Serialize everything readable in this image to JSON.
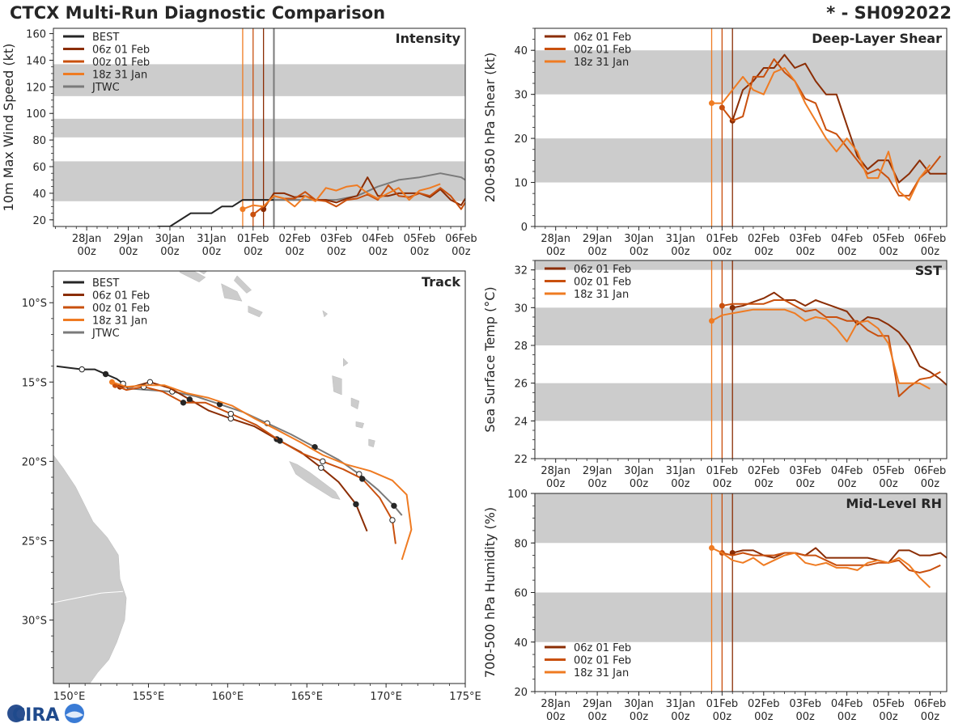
{
  "title": "CTCX Multi-Run Diagnostic Comparison",
  "storm_id": "* - SH092022",
  "logo_text": "CIRA",
  "colors": {
    "best": "#262626",
    "run06": "#8b2d04",
    "run00": "#c9500e",
    "run18": "#ef7b22",
    "jtwc": "#7a7a7a",
    "band": "#cccccc",
    "land": "#cccccc"
  },
  "time_ticks": [
    "28Jan\n00z",
    "29Jan\n00z",
    "30Jan\n00z",
    "31Jan\n00z",
    "01Feb\n00z",
    "02Feb\n00z",
    "03Feb\n00z",
    "04Feb\n00z",
    "05Feb\n00z",
    "06Feb\n00z"
  ],
  "chart_data": [
    {
      "id": "intensity",
      "type": "line",
      "title": "Intensity",
      "ylabel": "10m Max Wind Speed (kt)",
      "xlim": [
        -0.8,
        9.1
      ],
      "ylim": [
        15,
        164
      ],
      "yticks": [
        20,
        40,
        60,
        80,
        100,
        120,
        140,
        160
      ],
      "bands": [
        [
          34,
          64
        ],
        [
          82,
          96
        ],
        [
          113,
          137
        ]
      ],
      "vlines": [
        {
          "x": 3.75,
          "run": "run18"
        },
        {
          "x": 4.0,
          "run": "run00"
        },
        {
          "x": 4.25,
          "run": "run06"
        },
        {
          "x": 4.5,
          "run": "jtwc"
        }
      ],
      "legend": [
        "BEST",
        "06z 01 Feb",
        "00z 01 Feb",
        "18z 31 Jan",
        "JTWC"
      ],
      "series": [
        {
          "name": "BEST",
          "run": "best",
          "x": [
            1.7,
            2.0,
            2.5,
            3.0,
            3.25,
            3.5,
            3.75,
            4.0,
            4.25,
            4.5
          ],
          "y": [
            15,
            15,
            25,
            25,
            30,
            30,
            35,
            35,
            35,
            35
          ]
        },
        {
          "name": "JTWC",
          "run": "jtwc",
          "x": [
            4.5,
            5.0,
            5.5,
            6.0,
            6.5,
            7.0,
            7.5,
            8.0,
            8.5,
            9.0,
            9.1
          ],
          "y": [
            35,
            35,
            35,
            35,
            38,
            45,
            50,
            52,
            55,
            52,
            50
          ]
        },
        {
          "name": "06z 01 Feb",
          "run": "run06",
          "x": [
            4.25,
            4.5,
            4.75,
            5.0,
            5.25,
            5.5,
            5.75,
            6.0,
            6.25,
            6.5,
            6.75,
            7.0,
            7.25,
            7.5,
            7.75,
            8.0,
            8.25,
            8.5,
            8.75,
            9.0,
            9.1
          ],
          "y": [
            28,
            40,
            40,
            37,
            38,
            35,
            35,
            33,
            36,
            38,
            52,
            38,
            38,
            40,
            40,
            40,
            37,
            43,
            35,
            31,
            36
          ]
        },
        {
          "name": "00z 01 Feb",
          "run": "run00",
          "x": [
            4.0,
            4.25,
            4.5,
            4.75,
            5.0,
            5.25,
            5.5,
            5.75,
            6.0,
            6.25,
            6.5,
            6.75,
            7.0,
            7.25,
            7.5,
            7.75,
            8.0,
            8.25,
            8.5,
            8.75,
            9.0,
            9.1
          ],
          "y": [
            24,
            30,
            38,
            36,
            36,
            41,
            35,
            34,
            30,
            35,
            36,
            39,
            35,
            46,
            38,
            37,
            40,
            38,
            44,
            38,
            28,
            33
          ]
        },
        {
          "name": "18z 31 Jan",
          "run": "run18",
          "x": [
            3.75,
            4.0,
            4.25,
            4.5,
            4.75,
            5.0,
            5.25,
            5.5,
            5.75,
            6.0,
            6.25,
            6.5,
            6.75,
            7.0,
            7.25,
            7.5,
            7.75,
            8.0,
            8.25,
            8.5
          ],
          "y": [
            28,
            31,
            30,
            38,
            36,
            30,
            38,
            34,
            44,
            42,
            45,
            46,
            40,
            36,
            40,
            44,
            35,
            42,
            44,
            47
          ]
        }
      ]
    },
    {
      "id": "shear",
      "type": "line",
      "title": "Deep-Layer Shear",
      "ylabel": "200-850 hPa Shear (kt)",
      "xlim": [
        -0.5,
        9.4
      ],
      "ylim": [
        0,
        45
      ],
      "yticks": [
        0,
        10,
        20,
        30,
        40
      ],
      "bands": [
        [
          10,
          20
        ],
        [
          30,
          40
        ]
      ],
      "vlines": [
        {
          "x": 3.75,
          "run": "run18"
        },
        {
          "x": 4.0,
          "run": "run00"
        },
        {
          "x": 4.25,
          "run": "run06"
        }
      ],
      "legend": [
        "06z 01 Feb",
        "00z 01 Feb",
        "18z 31 Jan"
      ],
      "series": [
        {
          "name": "06z 01 Feb",
          "run": "run06",
          "x": [
            4.25,
            4.5,
            4.75,
            5.0,
            5.25,
            5.5,
            5.75,
            6.0,
            6.25,
            6.5,
            6.75,
            7.0,
            7.25,
            7.5,
            7.75,
            8.0,
            8.25,
            8.5,
            8.75,
            9.0,
            9.25,
            9.4
          ],
          "y": [
            24,
            31,
            33,
            36,
            36,
            39,
            36,
            37,
            33,
            30,
            30,
            23,
            16,
            13,
            15,
            15,
            10,
            12,
            15,
            12,
            12,
            12
          ]
        },
        {
          "name": "00z 01 Feb",
          "run": "run00",
          "x": [
            4.0,
            4.25,
            4.5,
            4.75,
            5.0,
            5.25,
            5.5,
            5.75,
            6.0,
            6.25,
            6.5,
            6.75,
            7.0,
            7.25,
            7.5,
            7.75,
            8.0,
            8.25,
            8.5,
            8.75,
            9.0,
            9.25
          ],
          "y": [
            27,
            24,
            25,
            34,
            34,
            38,
            35,
            33,
            29,
            28,
            22,
            21,
            18,
            15,
            12,
            13,
            11,
            7,
            7,
            11,
            13,
            16
          ]
        },
        {
          "name": "18z 31 Jan",
          "run": "run18",
          "x": [
            3.75,
            4.0,
            4.25,
            4.5,
            4.75,
            5.0,
            5.25,
            5.5,
            5.75,
            6.0,
            6.25,
            6.5,
            6.75,
            7.0,
            7.25,
            7.5,
            7.75,
            8.0,
            8.25,
            8.5,
            8.75,
            9.0
          ],
          "y": [
            28,
            28,
            31,
            34,
            31,
            30,
            35,
            36,
            33,
            28,
            24,
            20,
            17,
            20,
            17,
            11,
            11,
            17,
            8,
            6,
            11,
            14
          ]
        }
      ]
    },
    {
      "id": "sst",
      "type": "line",
      "title": "SST",
      "ylabel": "Sea Surface Temp (°C)",
      "xlim": [
        -0.5,
        9.4
      ],
      "ylim": [
        22,
        32.5
      ],
      "yticks": [
        22,
        24,
        26,
        28,
        30,
        32
      ],
      "bands": [
        [
          24,
          26
        ],
        [
          28,
          30
        ],
        [
          32,
          32.5
        ]
      ],
      "vlines": [
        {
          "x": 3.75,
          "run": "run18"
        },
        {
          "x": 4.0,
          "run": "run00"
        },
        {
          "x": 4.25,
          "run": "run06"
        }
      ],
      "legend": [
        "06z 01 Feb",
        "00z 01 Feb",
        "18z 31 Jan"
      ],
      "series": [
        {
          "name": "06z 01 Feb",
          "run": "run06",
          "x": [
            4.25,
            4.5,
            4.75,
            5.0,
            5.25,
            5.5,
            5.75,
            6.0,
            6.25,
            6.5,
            6.75,
            7.0,
            7.25,
            7.5,
            7.75,
            8.0,
            8.25,
            8.5,
            8.75,
            9.0,
            9.25,
            9.4
          ],
          "y": [
            30.0,
            30.1,
            30.3,
            30.5,
            30.8,
            30.4,
            30.4,
            30.1,
            30.4,
            30.2,
            30.0,
            29.8,
            29.1,
            29.5,
            29.4,
            29.1,
            28.7,
            28.0,
            26.9,
            26.6,
            26.2,
            25.9
          ]
        },
        {
          "name": "00z 01 Feb",
          "run": "run00",
          "x": [
            4.0,
            4.25,
            4.5,
            4.75,
            5.0,
            5.25,
            5.5,
            5.75,
            6.0,
            6.25,
            6.5,
            6.75,
            7.0,
            7.25,
            7.5,
            7.75,
            8.0,
            8.25,
            8.5,
            8.75,
            9.0,
            9.25
          ],
          "y": [
            30.1,
            30.2,
            30.2,
            30.2,
            30.2,
            30.4,
            30.4,
            30.1,
            29.8,
            29.9,
            29.5,
            29.5,
            29.3,
            29.3,
            28.8,
            28.5,
            28.5,
            25.3,
            25.8,
            26.2,
            26.3,
            26.6
          ]
        },
        {
          "name": "18z 31 Jan",
          "run": "run18",
          "x": [
            3.75,
            4.0,
            4.25,
            4.5,
            4.75,
            5.0,
            5.25,
            5.5,
            5.75,
            6.0,
            6.25,
            6.5,
            6.75,
            7.0,
            7.25,
            7.5,
            7.75,
            8.0,
            8.25,
            8.5,
            8.75,
            9.0
          ],
          "y": [
            29.3,
            29.6,
            29.7,
            29.8,
            29.9,
            29.9,
            29.9,
            29.9,
            29.7,
            29.3,
            29.5,
            29.4,
            28.9,
            28.2,
            29.2,
            29.3,
            28.9,
            28.1,
            26.0,
            26.0,
            26.0,
            25.7
          ]
        }
      ]
    },
    {
      "id": "rh",
      "type": "line",
      "title": "Mid-Level RH",
      "ylabel": "700-500 hPa Humidity (%)",
      "xlim": [
        -0.5,
        9.4
      ],
      "ylim": [
        20,
        100
      ],
      "yticks": [
        20,
        40,
        60,
        80,
        100
      ],
      "bands": [
        [
          40,
          60
        ],
        [
          80,
          100
        ]
      ],
      "vlines": [
        {
          "x": 3.75,
          "run": "run18"
        },
        {
          "x": 4.0,
          "run": "run00"
        },
        {
          "x": 4.25,
          "run": "run06"
        }
      ],
      "legend": [
        "06z 01 Feb",
        "00z 01 Feb",
        "18z 31 Jan"
      ],
      "series": [
        {
          "name": "06z 01 Feb",
          "run": "run06",
          "x": [
            4.25,
            4.5,
            4.75,
            5.0,
            5.25,
            5.5,
            5.75,
            6.0,
            6.25,
            6.5,
            6.75,
            7.0,
            7.25,
            7.5,
            7.75,
            8.0,
            8.25,
            8.5,
            8.75,
            9.0,
            9.25,
            9.4
          ],
          "y": [
            76,
            77,
            77,
            75,
            74,
            76,
            76,
            75,
            78,
            74,
            74,
            74,
            74,
            74,
            73,
            72,
            77,
            77,
            75,
            75,
            76,
            74
          ]
        },
        {
          "name": "00z 01 Feb",
          "run": "run00",
          "x": [
            4.0,
            4.25,
            4.5,
            4.75,
            5.0,
            5.25,
            5.5,
            5.75,
            6.0,
            6.25,
            6.5,
            6.75,
            7.0,
            7.25,
            7.5,
            7.75,
            8.0,
            8.25,
            8.5,
            8.75,
            9.0,
            9.25
          ],
          "y": [
            76,
            75,
            76,
            75,
            75,
            75,
            76,
            76,
            75,
            75,
            73,
            71,
            71,
            71,
            71,
            72,
            72,
            73,
            69,
            68,
            69,
            71
          ]
        },
        {
          "name": "18z 31 Jan",
          "run": "run18",
          "x": [
            3.75,
            4.0,
            4.25,
            4.5,
            4.75,
            5.0,
            5.25,
            5.5,
            5.75,
            6.0,
            6.25,
            6.5,
            6.75,
            7.0,
            7.25,
            7.5,
            7.75,
            8.0,
            8.25,
            8.5,
            8.75,
            9.0
          ],
          "y": [
            78,
            76,
            73,
            72,
            74,
            71,
            73,
            75,
            76,
            72,
            71,
            72,
            70,
            70,
            69,
            72,
            73,
            72,
            74,
            71,
            66,
            62
          ]
        }
      ]
    },
    {
      "id": "track",
      "type": "line",
      "title": "Track",
      "xlim": [
        149,
        175
      ],
      "ylim": [
        -34,
        -8
      ],
      "xticks": [
        150,
        155,
        160,
        165,
        170,
        175
      ],
      "xtick_labels": [
        "150°E",
        "155°E",
        "160°E",
        "165°E",
        "170°E",
        "175°E"
      ],
      "yticks": [
        -10,
        -15,
        -20,
        -25,
        -30
      ],
      "ytick_labels": [
        "10°S",
        "15°S",
        "20°S",
        "25°S",
        "30°S"
      ],
      "legend": [
        "BEST",
        "06z 01 Feb",
        "00z 01 Feb",
        "18z 31 Jan",
        "JTWC"
      ],
      "series": [
        {
          "name": "BEST",
          "run": "best",
          "lon": [
            149.2,
            150.0,
            150.8,
            151.6,
            152.3,
            153.0,
            153.4,
            153.7
          ],
          "lat": [
            -14.0,
            -14.1,
            -14.2,
            -14.2,
            -14.5,
            -14.8,
            -15.1,
            -15.4
          ]
        },
        {
          "name": "JTWC",
          "run": "jtwc",
          "lon": [
            153.7,
            155.0,
            156.5,
            158.0,
            159.5,
            161.0,
            162.5,
            164.0,
            165.5,
            167.0,
            168.3,
            169.5,
            170.5,
            171.0
          ],
          "lat": [
            -15.4,
            -15.5,
            -15.6,
            -15.9,
            -16.4,
            -16.9,
            -17.6,
            -18.3,
            -19.1,
            -19.9,
            -20.8,
            -21.8,
            -22.8,
            -23.4
          ]
        },
        {
          "name": "06z 01 Feb",
          "run": "run06",
          "lon": [
            153.2,
            154.0,
            155.1,
            156.4,
            157.6,
            158.8,
            160.2,
            161.7,
            163.1,
            164.6,
            165.9,
            167.0,
            168.1,
            168.8
          ],
          "lat": [
            -15.3,
            -15.3,
            -15.0,
            -15.4,
            -16.1,
            -16.8,
            -17.3,
            -17.8,
            -18.6,
            -19.4,
            -20.4,
            -21.3,
            -22.7,
            -24.4
          ]
        },
        {
          "name": "00z 01 Feb",
          "run": "run00",
          "lon": [
            152.9,
            153.6,
            154.7,
            155.9,
            157.2,
            158.6,
            160.2,
            161.8,
            163.3,
            164.7,
            166.0,
            167.3,
            168.5,
            169.6,
            170.4,
            170.6
          ],
          "lat": [
            -15.2,
            -15.5,
            -15.3,
            -15.6,
            -16.3,
            -16.3,
            -17.0,
            -17.7,
            -18.7,
            -19.5,
            -20.0,
            -20.5,
            -21.1,
            -22.3,
            -23.7,
            -25.2
          ]
        },
        {
          "name": "18z 31 Jan",
          "run": "run18",
          "lon": [
            152.7,
            153.6,
            154.8,
            156.0,
            157.4,
            158.8,
            160.3,
            161.7,
            163.1,
            164.6,
            166.0,
            167.5,
            169.0,
            170.4,
            171.3,
            171.6,
            171.0
          ],
          "lat": [
            -15.0,
            -15.3,
            -15.2,
            -15.2,
            -15.7,
            -16.0,
            -16.5,
            -17.3,
            -18.0,
            -18.8,
            -19.6,
            -20.2,
            -20.6,
            -21.2,
            -22.1,
            -24.3,
            -26.2
          ]
        }
      ]
    }
  ]
}
